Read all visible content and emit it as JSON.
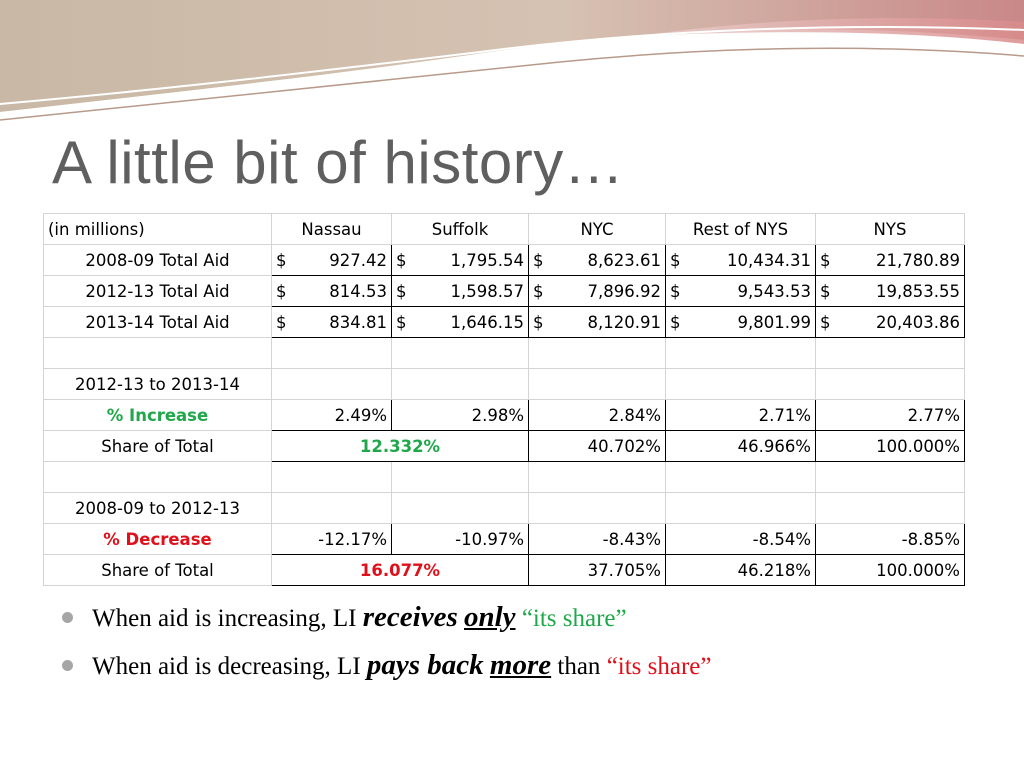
{
  "title": "A little bit of history…",
  "table": {
    "header": [
      "(in millions)",
      "Nassau",
      "Suffolk",
      "NYC",
      "Rest of NYS",
      "NYS"
    ],
    "aid_rows": [
      {
        "label": "2008-09 Total Aid",
        "values": [
          "927.42",
          "1,795.54",
          "8,623.61",
          "10,434.31",
          "21,780.89"
        ]
      },
      {
        "label": "2012-13 Total Aid",
        "values": [
          "814.53",
          "1,598.57",
          "7,896.92",
          "9,543.53",
          "19,853.55"
        ]
      },
      {
        "label": "2013-14 Total Aid",
        "values": [
          "834.81",
          "1,646.15",
          "8,120.91",
          "9,801.99",
          "20,403.86"
        ]
      }
    ],
    "currency_symbol": "$",
    "section1": {
      "label": "2012-13 to 2013-14",
      "change_label": "% Increase",
      "change_values": [
        "2.49%",
        "2.98%",
        "2.84%",
        "2.71%",
        "2.77%"
      ],
      "share_label": "Share of Total",
      "li_share": "12.332%",
      "share_values": [
        "40.702%",
        "46.966%",
        "100.000%"
      ]
    },
    "section2": {
      "label": "2008-09 to 2012-13",
      "change_label": "% Decrease",
      "change_values": [
        "-12.17%",
        "-10.97%",
        "-8.43%",
        "-8.54%",
        "-8.85%"
      ],
      "share_label": "Share of Total",
      "li_share": "16.077%",
      "share_values": [
        "37.705%",
        "46.218%",
        "100.000%"
      ]
    }
  },
  "bullets": [
    {
      "text1": "When aid is increasing, LI ",
      "emph1": "receives",
      "sp": " ",
      "emph2": "only",
      "text2": " ",
      "quote": "“its share”"
    },
    {
      "text1": "When aid is decreasing, LI ",
      "emph1": "pays back",
      "sp": " ",
      "emph2": "more",
      "text2": " than ",
      "quote": "“its share”"
    }
  ],
  "colors": {
    "increase": "#1fa84a",
    "decrease": "#e0101a",
    "title": "#5f5f5f",
    "accent": "#d9a3a3"
  }
}
